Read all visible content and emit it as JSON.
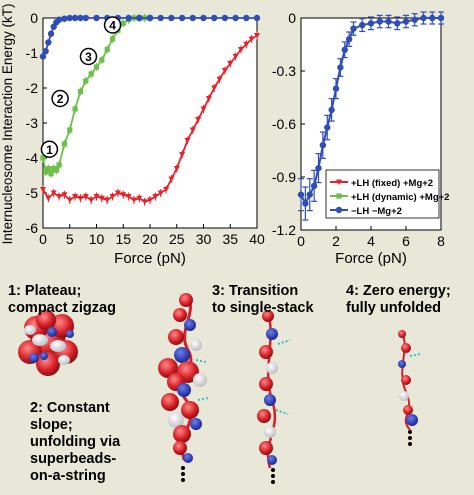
{
  "colors": {
    "red": "#e8212b",
    "green": "#6cc04a",
    "blue": "#2f4db8",
    "background": "#e9e7d8"
  },
  "chart_data": [
    {
      "type": "line",
      "ylabel": "Internucleosome Interaction Energy (kT)",
      "xlabel": "Force (pN)",
      "xlim": [
        0,
        40
      ],
      "ylim": [
        -6,
        0
      ],
      "xticks": [
        "0",
        "5",
        "10",
        "15",
        "20",
        "25",
        "30",
        "35",
        "40"
      ],
      "yticks": [
        "0",
        "-1",
        "-2",
        "-3",
        "-4",
        "-5",
        "-6"
      ],
      "series": [
        {
          "name": "+LH (fixed) +Mg+2",
          "color": "#e8212b",
          "x": [
            0,
            1,
            2,
            3,
            4,
            5,
            6,
            7,
            8,
            9,
            10,
            11,
            12,
            13,
            14,
            15,
            16,
            17,
            18,
            19,
            20,
            21,
            22,
            23,
            24,
            25,
            26,
            27,
            28,
            29,
            30,
            31,
            32,
            33,
            34,
            35,
            36,
            37,
            38,
            39,
            40
          ],
          "y": [
            -4.9,
            -5.15,
            -5.0,
            -5.1,
            -5.05,
            -5.2,
            -5.1,
            -5.15,
            -5.1,
            -5.2,
            -5.1,
            -5.15,
            -5.2,
            -5.1,
            -5.0,
            -5.05,
            -5.1,
            -5.2,
            -5.15,
            -5.25,
            -5.2,
            -5.1,
            -5.0,
            -4.9,
            -4.6,
            -4.3,
            -3.9,
            -3.5,
            -3.2,
            -2.9,
            -2.6,
            -2.3,
            -2.0,
            -1.75,
            -1.5,
            -1.3,
            -1.1,
            -0.9,
            -0.75,
            -0.6,
            -0.5
          ]
        },
        {
          "name": "+LH (dynamic) +Mg+2",
          "color": "#6cc04a",
          "x": [
            0,
            0.5,
            1,
            1.5,
            2,
            2.5,
            3,
            4,
            5,
            6,
            7,
            8,
            9,
            10,
            11,
            12,
            13,
            14,
            15,
            16,
            17,
            18,
            19,
            20
          ],
          "y": [
            -4.0,
            -4.4,
            -4.3,
            -4.45,
            -4.3,
            -4.35,
            -4.2,
            -3.6,
            -3.2,
            -2.6,
            -2.1,
            -1.8,
            -1.6,
            -1.4,
            -1.2,
            -0.9,
            -0.6,
            -0.35,
            -0.15,
            -0.05,
            0.0,
            0.0,
            0.0,
            0.0
          ]
        },
        {
          "name": "−LH −Mg+2",
          "color": "#2f4db8",
          "x": [
            0,
            0.5,
            1,
            1.5,
            2,
            2.5,
            3,
            4,
            5,
            6,
            7,
            8,
            10,
            12,
            14,
            16,
            18,
            20,
            22,
            24,
            26,
            28,
            30,
            32,
            34,
            36,
            38,
            40
          ],
          "y": [
            -1.1,
            -0.95,
            -0.7,
            -0.45,
            -0.25,
            -0.12,
            -0.05,
            -0.02,
            0,
            0,
            0,
            0,
            0,
            0,
            0,
            0,
            0,
            0,
            0,
            0,
            0,
            0,
            0,
            0,
            0,
            0,
            0,
            0
          ]
        }
      ],
      "annotations": [
        "1",
        "2",
        "3",
        "4"
      ],
      "annotation_points": [
        {
          "label": "1",
          "x": 1.2,
          "y": -3.75
        },
        {
          "label": "2",
          "x": 3.2,
          "y": -2.3
        },
        {
          "label": "3",
          "x": 8.5,
          "y": -1.1
        },
        {
          "label": "4",
          "x": 13.0,
          "y": -0.2
        }
      ]
    },
    {
      "type": "line",
      "xlabel": "Force (pN)",
      "xlim": [
        0,
        8
      ],
      "ylim": [
        -1.2,
        0
      ],
      "xticks": [
        "0",
        "2",
        "4",
        "6",
        "8"
      ],
      "yticks": [
        "0",
        "-0.3",
        "-0.6",
        "-0.9",
        "-1.2"
      ],
      "series": [
        {
          "name": "−LH −Mg+2",
          "color": "#2f4db8",
          "x": [
            0,
            0.25,
            0.5,
            0.75,
            1,
            1.25,
            1.5,
            1.75,
            2,
            2.25,
            2.5,
            2.75,
            3,
            3.5,
            4,
            4.5,
            5,
            5.5,
            6,
            6.5,
            7,
            7.5,
            8
          ],
          "y": [
            -1.0,
            -1.05,
            -1.0,
            -0.95,
            -0.85,
            -0.72,
            -0.62,
            -0.52,
            -0.4,
            -0.28,
            -0.18,
            -0.12,
            -0.06,
            -0.04,
            -0.03,
            -0.02,
            -0.02,
            -0.03,
            -0.02,
            -0.01,
            0,
            0,
            0
          ]
        }
      ],
      "legend": {
        "position": "bottom-right",
        "entries": [
          "+LH (fixed) +Mg+2",
          "+LH (dynamic) +Mg+2",
          "−LH −Mg+2"
        ]
      }
    }
  ],
  "captions": {
    "c1": [
      "1: Plateau;",
      "compact zigzag"
    ],
    "c2": [
      "2: Constant",
      "slope;",
      "unfolding via",
      "superbeads-",
      "on-a-string"
    ],
    "c3": [
      "3: Transition",
      "to single-stack"
    ],
    "c4": [
      "4: Zero energy;",
      "fully unfolded"
    ]
  }
}
